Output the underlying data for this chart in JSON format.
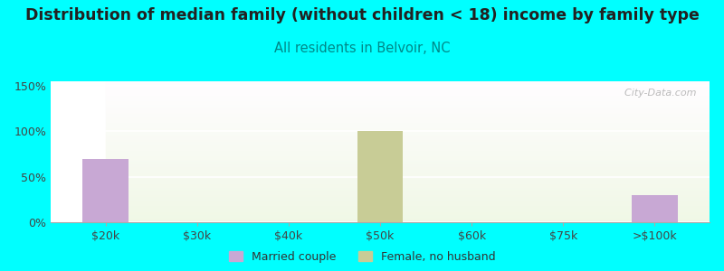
{
  "title": "Distribution of median family (without children < 18) income by family type",
  "subtitle": "All residents in Belvoir, NC",
  "background_color": "#00FFFF",
  "categories": [
    "$20k",
    "$30k",
    "$40k",
    "$50k",
    "$60k",
    "$75k",
    ">$100k"
  ],
  "married_couple": [
    70,
    0,
    0,
    0,
    0,
    0,
    30
  ],
  "female_no_husband": [
    0,
    0,
    0,
    100,
    0,
    0,
    0
  ],
  "married_couple_color": "#c8a8d4",
  "female_no_husband_color": "#c8cc96",
  "bar_width": 0.5,
  "ylim": [
    0,
    155
  ],
  "yticks": [
    0,
    50,
    100,
    150
  ],
  "ytick_labels": [
    "0%",
    "50%",
    "100%",
    "150%"
  ],
  "title_fontsize": 12.5,
  "subtitle_fontsize": 10.5,
  "subtitle_color": "#008888",
  "axis_label_fontsize": 9,
  "legend_fontsize": 9,
  "watermark": "  City-Data.com"
}
